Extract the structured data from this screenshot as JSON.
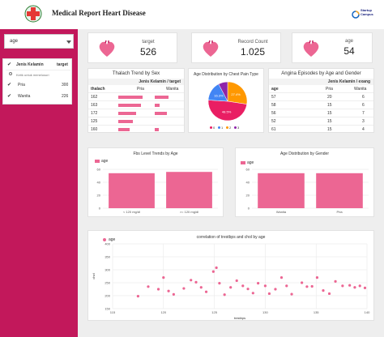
{
  "header": {
    "title": "Medical Report Heart Disease",
    "brand_line1": "Startup",
    "brand_line2": "Campus"
  },
  "filter": {
    "selected": "age",
    "column_label": "Jenis Kelamin",
    "column_metric": "target",
    "search_placeholder": "Ketik untuk menelusuri",
    "options": [
      {
        "label": "Pria",
        "count": "300"
      },
      {
        "label": "Wanita",
        "count": "226"
      }
    ]
  },
  "kpis": [
    {
      "label": "target",
      "value": "526"
    },
    {
      "label": "Record Count",
      "value": "1.025"
    },
    {
      "label": "age",
      "value": "54"
    }
  ],
  "thalach_table": {
    "title": "Thalach Trend by Sex",
    "group_header": "Jenis Kelamin / target",
    "col_row": "thalach",
    "col_a": "Pria",
    "col_b": "Wanita",
    "rows": [
      {
        "label": "162",
        "a": 0.75,
        "b": 0.55
      },
      {
        "label": "163",
        "a": 0.7,
        "b": 0.2
      },
      {
        "label": "172",
        "a": 0.55,
        "b": 0.5
      },
      {
        "label": "125",
        "a": 0.45,
        "b": 0.0
      },
      {
        "label": "160",
        "a": 0.35,
        "b": 0.15
      }
    ]
  },
  "pie_chart": {
    "title": "Age Distribution by Chest Pain Type",
    "type": "pie",
    "slices": [
      {
        "name": "0",
        "value": 48.5,
        "label": "48.5%",
        "color": "#e91e63"
      },
      {
        "name": "1",
        "value": 16.3,
        "label": "16.3%",
        "color": "#4285f4"
      },
      {
        "name": "2",
        "value": 27.4,
        "label": "27.4%",
        "color": "#ff9800"
      },
      {
        "name": "3",
        "value": 7.7,
        "label": "",
        "color": "#8e24aa"
      }
    ]
  },
  "angina_table": {
    "title": "Angina Episodes by Age and Gender",
    "group_header": "Jenis Kelamin / exang",
    "col_row": "age",
    "col_a": "Pria",
    "col_b": "Wanita",
    "rows": [
      {
        "age": "57",
        "a": "20",
        "b": "6"
      },
      {
        "age": "58",
        "a": "15",
        "b": "6"
      },
      {
        "age": "56",
        "a": "15",
        "b": "7"
      },
      {
        "age": "52",
        "a": "15",
        "b": "3"
      },
      {
        "age": "61",
        "a": "15",
        "b": "4"
      }
    ]
  },
  "fbs_chart": {
    "title": "Fbs Level Trends by Age",
    "legend": "age",
    "type": "bar",
    "categories": [
      "< 120 mg/dl",
      ">= 120 mg/dl"
    ],
    "values": [
      54,
      56
    ],
    "yticks": [
      "0",
      "20",
      "40",
      "60"
    ],
    "ylim": [
      0,
      60
    ]
  },
  "gender_chart": {
    "title": "Age Distribution by Gender",
    "legend": "age",
    "type": "bar",
    "categories": [
      "Wanita",
      "Pria"
    ],
    "values": [
      54,
      54
    ],
    "yticks": [
      "0",
      "20",
      "40",
      "60"
    ],
    "ylim": [
      0,
      60
    ]
  },
  "chart_data": {
    "type": "scatter",
    "title": "correlation of trestbps and chol by age",
    "legend": "age",
    "xlabel": "trestbps",
    "ylabel": "chol",
    "xlim": [
      115,
      140
    ],
    "ylim": [
      150,
      400
    ],
    "xticks": [
      "115",
      "120",
      "125",
      "130",
      "135",
      "140"
    ],
    "yticks": [
      "150",
      "200",
      "250",
      "300",
      "350",
      "400"
    ],
    "points": [
      [
        117.5,
        198
      ],
      [
        118.5,
        235
      ],
      [
        119.5,
        225
      ],
      [
        120,
        270
      ],
      [
        120.5,
        218
      ],
      [
        121,
        205
      ],
      [
        122,
        228
      ],
      [
        122.7,
        260
      ],
      [
        123.2,
        252
      ],
      [
        123.7,
        232
      ],
      [
        124.2,
        215
      ],
      [
        124.9,
        293
      ],
      [
        125.2,
        308
      ],
      [
        125.5,
        248
      ],
      [
        126.0,
        204
      ],
      [
        126.6,
        232
      ],
      [
        127.2,
        258
      ],
      [
        127.8,
        238
      ],
      [
        128.3,
        226
      ],
      [
        128.8,
        210
      ],
      [
        129.3,
        248
      ],
      [
        130.0,
        238
      ],
      [
        130.4,
        208
      ],
      [
        131.0,
        225
      ],
      [
        131.6,
        270
      ],
      [
        132.1,
        238
      ],
      [
        132.6,
        206
      ],
      [
        133.6,
        250
      ],
      [
        134.1,
        235
      ],
      [
        134.6,
        236
      ],
      [
        135.1,
        270
      ],
      [
        135.7,
        220
      ],
      [
        136.3,
        208
      ],
      [
        136.9,
        255
      ],
      [
        137.6,
        238
      ],
      [
        138.3,
        240
      ],
      [
        138.8,
        232
      ],
      [
        139.3,
        238
      ],
      [
        139.8,
        230
      ]
    ]
  }
}
